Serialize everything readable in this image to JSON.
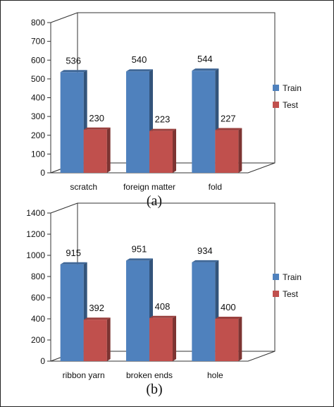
{
  "chart_data": [
    {
      "type": "bar",
      "categories": [
        "scratch",
        "foreign matter",
        "fold"
      ],
      "series": [
        {
          "name": "Train",
          "values": [
            536,
            540,
            544
          ],
          "color": "#4f81bd"
        },
        {
          "name": "Test",
          "values": [
            230,
            223,
            227
          ],
          "color": "#c0504d"
        }
      ],
      "ylim": [
        0,
        800
      ],
      "yticks": [
        0,
        100,
        200,
        300,
        400,
        500,
        600,
        700,
        800
      ],
      "caption": "(a)",
      "legend": "right",
      "grid": false
    },
    {
      "type": "bar",
      "categories": [
        "ribbon yarn",
        "broken ends",
        "hole"
      ],
      "series": [
        {
          "name": "Train",
          "values": [
            915,
            951,
            934
          ],
          "color": "#4f81bd"
        },
        {
          "name": "Test",
          "values": [
            392,
            408,
            400
          ],
          "color": "#c0504d"
        }
      ],
      "ylim": [
        0,
        1400
      ],
      "yticks": [
        0,
        200,
        400,
        600,
        800,
        1000,
        1200,
        1400
      ],
      "caption": "(b)",
      "legend": "right",
      "grid": false
    }
  ]
}
